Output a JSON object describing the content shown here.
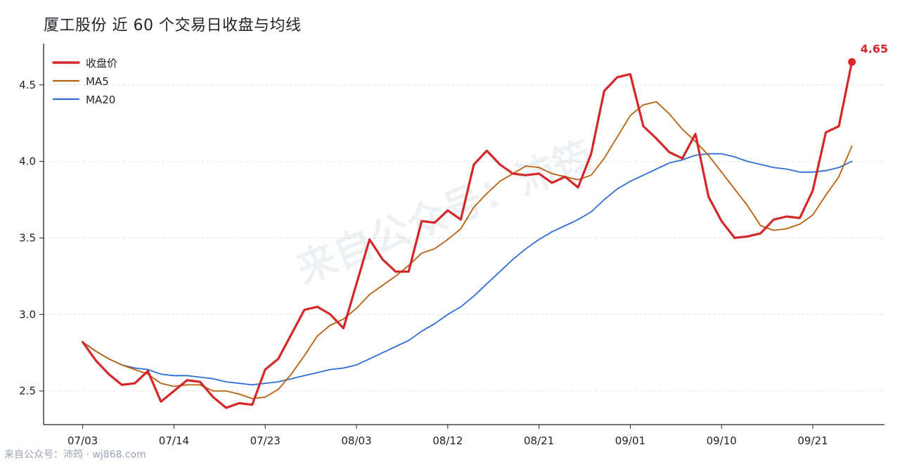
{
  "title": "厦工股份 近 60 个交易日收盘与均线",
  "watermark": "来自公众号：沛筠",
  "footer": "来自公众号：沛筠 · wj868.com",
  "colors": {
    "close": "#d62728",
    "ma5": "#b8600e",
    "ma20": "#2f6ed8",
    "grid": "#e3e3e3",
    "axis": "#222222"
  },
  "chart_data": {
    "type": "line",
    "title": "厦工股份 近 60 个交易日收盘与均线",
    "xlabel": "",
    "ylabel": "",
    "x_ticks": [
      {
        "index": 0,
        "label": "07/03"
      },
      {
        "index": 7,
        "label": "07/14"
      },
      {
        "index": 14,
        "label": "07/23"
      },
      {
        "index": 21,
        "label": "08/03"
      },
      {
        "index": 28,
        "label": "08/12"
      },
      {
        "index": 35,
        "label": "08/21"
      },
      {
        "index": 42,
        "label": "09/01"
      },
      {
        "index": 49,
        "label": "09/10"
      },
      {
        "index": 56,
        "label": "09/21"
      }
    ],
    "y_ticks": [
      2.5,
      3.0,
      3.5,
      4.0,
      4.5
    ],
    "ylim": [
      2.28,
      4.77
    ],
    "xlim": [
      -3,
      61.5
    ],
    "grid": "horizontal dashed",
    "legend_position": "top-left",
    "last_value_label": "4.65",
    "series": [
      {
        "name": "收盘价",
        "values": [
          2.82,
          2.7,
          2.61,
          2.54,
          2.55,
          2.63,
          2.43,
          2.5,
          2.57,
          2.56,
          2.46,
          2.39,
          2.42,
          2.41,
          2.64,
          2.71,
          2.87,
          3.03,
          3.05,
          3.0,
          2.91,
          3.2,
          3.49,
          3.36,
          3.28,
          3.28,
          3.61,
          3.6,
          3.68,
          3.62,
          3.98,
          4.07,
          3.98,
          3.92,
          3.91,
          3.92,
          3.86,
          3.9,
          3.83,
          4.05,
          4.46,
          4.55,
          4.57,
          4.23,
          4.15,
          4.06,
          4.02,
          4.18,
          3.77,
          3.61,
          3.5,
          3.51,
          3.53,
          3.62,
          3.64,
          3.63,
          3.81,
          4.19,
          4.23,
          4.65
        ]
      },
      {
        "name": "MA5",
        "values": [
          2.82,
          2.76,
          2.71,
          2.67,
          2.64,
          2.61,
          2.55,
          2.53,
          2.54,
          2.54,
          2.5,
          2.5,
          2.48,
          2.45,
          2.46,
          2.51,
          2.61,
          2.73,
          2.86,
          2.93,
          2.97,
          3.04,
          3.13,
          3.19,
          3.25,
          3.32,
          3.4,
          3.43,
          3.49,
          3.56,
          3.7,
          3.79,
          3.87,
          3.92,
          3.97,
          3.96,
          3.92,
          3.9,
          3.88,
          3.91,
          4.02,
          4.16,
          4.3,
          4.37,
          4.39,
          4.31,
          4.21,
          4.13,
          4.04,
          3.93,
          3.82,
          3.71,
          3.58,
          3.55,
          3.56,
          3.59,
          3.65,
          3.78,
          3.9,
          4.1
        ]
      },
      {
        "name": "MA20",
        "values": [
          2.82,
          2.76,
          2.71,
          2.67,
          2.65,
          2.64,
          2.61,
          2.6,
          2.6,
          2.59,
          2.58,
          2.56,
          2.55,
          2.54,
          2.55,
          2.56,
          2.58,
          2.6,
          2.62,
          2.64,
          2.65,
          2.67,
          2.71,
          2.75,
          2.79,
          2.83,
          2.89,
          2.94,
          3.0,
          3.05,
          3.12,
          3.2,
          3.28,
          3.36,
          3.43,
          3.49,
          3.54,
          3.58,
          3.62,
          3.67,
          3.75,
          3.82,
          3.87,
          3.91,
          3.95,
          3.99,
          4.01,
          4.04,
          4.05,
          4.05,
          4.03,
          4.0,
          3.98,
          3.96,
          3.95,
          3.93,
          3.93,
          3.94,
          3.96,
          4.0
        ]
      }
    ]
  }
}
